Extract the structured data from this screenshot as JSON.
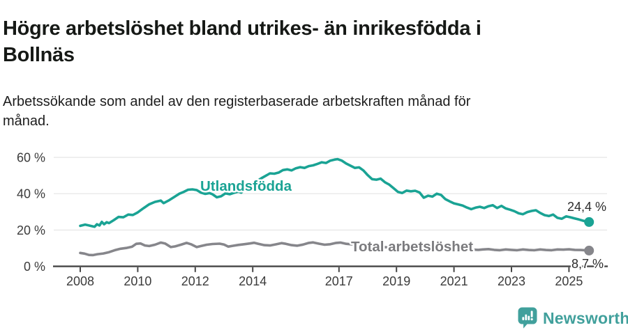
{
  "header": {
    "title_lines": [
      "Högre arbetslöshet bland utrikes- än inrikesfödda i",
      "Bollnäs"
    ],
    "subtitle_lines": [
      "Arbetssökande som andel av den registerbaserade arbetskraften månad för",
      "månad."
    ]
  },
  "chart_data": {
    "type": "line",
    "title": "Högre arbetslöshet bland utrikes- än inrikesfödda i Bollnäs",
    "subtitle": "Arbetssökande som andel av den registerbaserade arbetskraften månad för månad.",
    "grid": "horizontal",
    "legend": "inline-labels",
    "colors": {
      "utlandsfodda": "#1aa394",
      "total": "#86868b",
      "gridline": "#e8e8e8",
      "axis": "#454545",
      "annotation": "#2c2c2c"
    },
    "x_axis": {
      "range": [
        2007.1,
        2026.4
      ],
      "ticks": [
        {
          "value": 2008,
          "label": "2008"
        },
        {
          "value": 2010,
          "label": "2010"
        },
        {
          "value": 2012,
          "label": "2012"
        },
        {
          "value": 2014,
          "label": "2014"
        },
        {
          "value": 2017,
          "label": "2017"
        },
        {
          "value": 2019,
          "label": "2019"
        },
        {
          "value": 2021,
          "label": "2021"
        },
        {
          "value": 2023,
          "label": "2023"
        },
        {
          "value": 2025,
          "label": "2025"
        }
      ]
    },
    "y_axis": {
      "unit": "%",
      "range": [
        0,
        65
      ],
      "ticks": [
        {
          "value": 0,
          "label": "0 %"
        },
        {
          "value": 20,
          "label": "20 %"
        },
        {
          "value": 40,
          "label": "40 %"
        },
        {
          "value": 60,
          "label": "60 %"
        }
      ]
    },
    "series": [
      {
        "id": "utlandsfodda",
        "name": "Utlandsfödda",
        "color": "#1aa394",
        "label_color": "#1aa394",
        "end_value": 24.4,
        "end_label": "24,4 %",
        "points": [
          [
            2008.0,
            22.3
          ],
          [
            2008.17,
            23.0
          ],
          [
            2008.33,
            22.4
          ],
          [
            2008.5,
            21.8
          ],
          [
            2008.58,
            23.2
          ],
          [
            2008.67,
            22.5
          ],
          [
            2008.75,
            24.5
          ],
          [
            2008.83,
            23.2
          ],
          [
            2008.92,
            24.3
          ],
          [
            2009.0,
            23.8
          ],
          [
            2009.17,
            25.5
          ],
          [
            2009.33,
            27.2
          ],
          [
            2009.5,
            27.0
          ],
          [
            2009.67,
            28.5
          ],
          [
            2009.83,
            28.3
          ],
          [
            2010.0,
            29.7
          ],
          [
            2010.2,
            32.0
          ],
          [
            2010.4,
            34.2
          ],
          [
            2010.6,
            35.5
          ],
          [
            2010.8,
            36.2
          ],
          [
            2010.9,
            34.8
          ],
          [
            2011.1,
            36.5
          ],
          [
            2011.3,
            38.5
          ],
          [
            2011.45,
            40.0
          ],
          [
            2011.6,
            41.0
          ],
          [
            2011.75,
            42.2
          ],
          [
            2011.9,
            42.4
          ],
          [
            2012.05,
            42.0
          ],
          [
            2012.2,
            40.6
          ],
          [
            2012.35,
            39.9
          ],
          [
            2012.5,
            40.3
          ],
          [
            2012.6,
            39.7
          ],
          [
            2012.75,
            38.0
          ],
          [
            2012.9,
            38.6
          ],
          [
            2013.05,
            40.2
          ],
          [
            2013.2,
            39.7
          ],
          [
            2013.35,
            40.5
          ],
          [
            2013.5,
            41.2
          ],
          [
            2013.6,
            40.6
          ],
          [
            2013.7,
            42.0
          ],
          [
            2013.85,
            44.0
          ],
          [
            2014.0,
            45.5
          ],
          [
            2014.15,
            47.0
          ],
          [
            2014.3,
            48.5
          ],
          [
            2014.45,
            49.8
          ],
          [
            2014.6,
            51.2
          ],
          [
            2014.75,
            51.0
          ],
          [
            2014.9,
            51.6
          ],
          [
            2015.05,
            53.0
          ],
          [
            2015.2,
            53.4
          ],
          [
            2015.35,
            52.8
          ],
          [
            2015.5,
            54.0
          ],
          [
            2015.65,
            54.6
          ],
          [
            2015.8,
            54.2
          ],
          [
            2015.95,
            55.2
          ],
          [
            2016.1,
            55.6
          ],
          [
            2016.25,
            56.4
          ],
          [
            2016.4,
            57.3
          ],
          [
            2016.55,
            56.9
          ],
          [
            2016.7,
            58.2
          ],
          [
            2016.85,
            58.8
          ],
          [
            2016.95,
            59.0
          ],
          [
            2017.1,
            58.2
          ],
          [
            2017.25,
            56.6
          ],
          [
            2017.4,
            55.4
          ],
          [
            2017.55,
            54.2
          ],
          [
            2017.7,
            54.5
          ],
          [
            2017.85,
            52.8
          ],
          [
            2018.0,
            50.2
          ],
          [
            2018.15,
            48.0
          ],
          [
            2018.3,
            47.7
          ],
          [
            2018.45,
            48.3
          ],
          [
            2018.6,
            46.3
          ],
          [
            2018.75,
            45.0
          ],
          [
            2018.9,
            43.0
          ],
          [
            2019.05,
            41.0
          ],
          [
            2019.2,
            40.4
          ],
          [
            2019.35,
            41.7
          ],
          [
            2019.5,
            41.3
          ],
          [
            2019.65,
            41.6
          ],
          [
            2019.8,
            40.7
          ],
          [
            2019.95,
            37.8
          ],
          [
            2020.1,
            38.9
          ],
          [
            2020.25,
            38.4
          ],
          [
            2020.4,
            40.0
          ],
          [
            2020.55,
            39.3
          ],
          [
            2020.7,
            37.0
          ],
          [
            2020.85,
            35.8
          ],
          [
            2021.0,
            34.7
          ],
          [
            2021.15,
            34.1
          ],
          [
            2021.3,
            33.5
          ],
          [
            2021.45,
            32.4
          ],
          [
            2021.6,
            31.5
          ],
          [
            2021.75,
            32.3
          ],
          [
            2021.9,
            32.8
          ],
          [
            2022.05,
            32.1
          ],
          [
            2022.2,
            33.1
          ],
          [
            2022.35,
            33.7
          ],
          [
            2022.5,
            32.1
          ],
          [
            2022.65,
            33.3
          ],
          [
            2022.8,
            31.9
          ],
          [
            2022.95,
            31.2
          ],
          [
            2023.1,
            30.4
          ],
          [
            2023.25,
            29.2
          ],
          [
            2023.4,
            28.7
          ],
          [
            2023.55,
            29.9
          ],
          [
            2023.7,
            30.5
          ],
          [
            2023.85,
            30.9
          ],
          [
            2024.0,
            29.4
          ],
          [
            2024.15,
            28.2
          ],
          [
            2024.3,
            27.7
          ],
          [
            2024.45,
            28.5
          ],
          [
            2024.6,
            26.7
          ],
          [
            2024.75,
            26.2
          ],
          [
            2024.9,
            27.5
          ],
          [
            2025.05,
            27.0
          ],
          [
            2025.2,
            26.4
          ],
          [
            2025.35,
            25.8
          ],
          [
            2025.5,
            25.1
          ],
          [
            2025.6,
            24.7
          ],
          [
            2025.7,
            24.4
          ]
        ]
      },
      {
        "id": "total",
        "name": "Total arbetslöshet",
        "color": "#86868b",
        "label_color": "#7b7b7e",
        "end_value": 8.7,
        "end_label": "8,7 %",
        "points": [
          [
            2008.0,
            7.4
          ],
          [
            2008.15,
            7.0
          ],
          [
            2008.3,
            6.3
          ],
          [
            2008.45,
            6.2
          ],
          [
            2008.6,
            6.7
          ],
          [
            2008.8,
            7.1
          ],
          [
            2009.0,
            7.8
          ],
          [
            2009.2,
            8.9
          ],
          [
            2009.4,
            9.7
          ],
          [
            2009.6,
            10.1
          ],
          [
            2009.8,
            10.8
          ],
          [
            2009.95,
            12.4
          ],
          [
            2010.1,
            12.6
          ],
          [
            2010.25,
            11.5
          ],
          [
            2010.4,
            11.2
          ],
          [
            2010.6,
            11.9
          ],
          [
            2010.8,
            13.1
          ],
          [
            2010.95,
            12.6
          ],
          [
            2011.15,
            10.6
          ],
          [
            2011.3,
            11.0
          ],
          [
            2011.5,
            11.9
          ],
          [
            2011.7,
            12.9
          ],
          [
            2011.85,
            12.2
          ],
          [
            2012.05,
            10.6
          ],
          [
            2012.2,
            11.2
          ],
          [
            2012.4,
            11.9
          ],
          [
            2012.6,
            12.3
          ],
          [
            2012.85,
            12.5
          ],
          [
            2013.0,
            12.0
          ],
          [
            2013.15,
            10.9
          ],
          [
            2013.3,
            11.3
          ],
          [
            2013.5,
            11.8
          ],
          [
            2013.7,
            12.2
          ],
          [
            2013.9,
            12.6
          ],
          [
            2014.05,
            13.0
          ],
          [
            2014.2,
            12.4
          ],
          [
            2014.4,
            11.7
          ],
          [
            2014.6,
            11.5
          ],
          [
            2014.8,
            12.1
          ],
          [
            2015.0,
            12.8
          ],
          [
            2015.15,
            12.4
          ],
          [
            2015.35,
            11.7
          ],
          [
            2015.55,
            11.4
          ],
          [
            2015.75,
            12.0
          ],
          [
            2015.95,
            12.9
          ],
          [
            2016.1,
            13.2
          ],
          [
            2016.3,
            12.5
          ],
          [
            2016.5,
            11.9
          ],
          [
            2016.7,
            12.2
          ],
          [
            2016.9,
            12.9
          ],
          [
            2017.05,
            13.1
          ],
          [
            2017.25,
            12.4
          ],
          [
            2017.45,
            12.1
          ],
          [
            2017.65,
            12.5
          ],
          [
            2017.85,
            12.0
          ],
          [
            2018.05,
            11.4
          ],
          [
            2018.25,
            11.0
          ],
          [
            2018.45,
            10.8
          ],
          [
            2018.65,
            10.5
          ],
          [
            2018.85,
            10.3
          ],
          [
            2019.05,
            10.1
          ],
          [
            2019.25,
            10.3
          ],
          [
            2019.45,
            10.0
          ],
          [
            2019.65,
            9.8
          ],
          [
            2019.85,
            10.1
          ],
          [
            2020.05,
            10.6
          ],
          [
            2020.25,
            11.1
          ],
          [
            2020.45,
            11.0
          ],
          [
            2020.65,
            10.7
          ],
          [
            2020.85,
            10.3
          ],
          [
            2021.05,
            10.0
          ],
          [
            2021.25,
            9.6
          ],
          [
            2021.45,
            9.4
          ],
          [
            2021.65,
            9.2
          ],
          [
            2021.85,
            9.1
          ],
          [
            2022.0,
            9.3
          ],
          [
            2022.2,
            9.5
          ],
          [
            2022.4,
            9.1
          ],
          [
            2022.6,
            8.9
          ],
          [
            2022.8,
            9.3
          ],
          [
            2023.0,
            9.1
          ],
          [
            2023.2,
            8.9
          ],
          [
            2023.4,
            9.3
          ],
          [
            2023.6,
            9.0
          ],
          [
            2023.8,
            8.9
          ],
          [
            2024.0,
            9.3
          ],
          [
            2024.2,
            9.0
          ],
          [
            2024.4,
            8.9
          ],
          [
            2024.6,
            9.3
          ],
          [
            2024.8,
            9.2
          ],
          [
            2025.0,
            9.4
          ],
          [
            2025.2,
            9.1
          ],
          [
            2025.4,
            9.0
          ],
          [
            2025.55,
            8.9
          ],
          [
            2025.7,
            8.7
          ]
        ]
      }
    ]
  },
  "footer": {
    "brand": "Newsworthy",
    "logo_icon": "newsworthy-speech-bubble-bar-chart-icon",
    "brand_color": "#41a09c"
  }
}
